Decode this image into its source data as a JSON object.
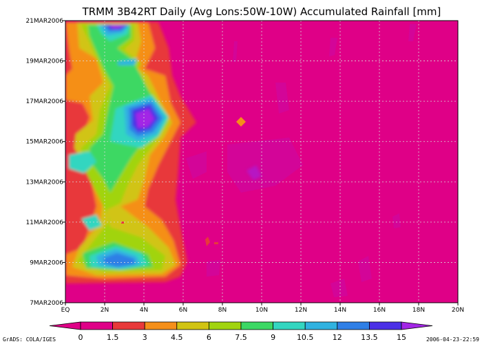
{
  "footer": {
    "left": "GrADS: COLA/IGES",
    "right": "2006-04-23-22:59"
  },
  "chart_data": {
    "type": "heatmap",
    "title": "TRMM 3B42RT Daily (Avg Lons:50W-10W) Accumulated Rainfall [mm]",
    "x_axis": {
      "label": "",
      "ticks": [
        "EQ",
        "2N",
        "4N",
        "6N",
        "8N",
        "10N",
        "12N",
        "14N",
        "16N",
        "18N",
        "20N"
      ],
      "range": [
        0,
        20
      ],
      "unit": "degrees latitude"
    },
    "y_axis": {
      "label": "",
      "ticks": [
        "7MAR2006",
        "9MAR2006",
        "11MAR2006",
        "13MAR2006",
        "15MAR2006",
        "17MAR2006",
        "19MAR2006",
        "21MAR2006"
      ],
      "range": [
        "2006-03-07",
        "2006-03-21"
      ]
    },
    "grid": true,
    "colorbar": {
      "position": "bottom",
      "levels": [
        0,
        1.5,
        3,
        4.5,
        6,
        7.5,
        9,
        10.5,
        12,
        13.5,
        15
      ],
      "labels": [
        "0",
        "1.5",
        "3",
        "4.5",
        "6",
        "7.5",
        "9",
        "10.5",
        "12",
        "13.5",
        "15"
      ],
      "colors": [
        "#df0087",
        "#e8393a",
        "#f58f19",
        "#d1c412",
        "#a1d40f",
        "#3cd864",
        "#33d6c0",
        "#30b2e0",
        "#2f7fe6",
        "#4b30e6",
        "#a326e6"
      ]
    },
    "rainfall_max_mm": [
      {
        "lat": 2.5,
        "date": "2006-03-21",
        "value": 15
      },
      {
        "lat": 3.0,
        "date": "2006-03-19",
        "value": 10.5
      },
      {
        "lat": 4.0,
        "date": "2006-03-16",
        "value": 15
      },
      {
        "lat": 1.0,
        "date": "2006-03-14",
        "value": 10.5
      },
      {
        "lat": 1.5,
        "date": "2006-03-11",
        "value": 9
      },
      {
        "lat": 2.5,
        "date": "2006-03-09",
        "value": 13.5
      },
      {
        "lat": 9.0,
        "date": "2006-03-16",
        "value": 3
      }
    ]
  }
}
